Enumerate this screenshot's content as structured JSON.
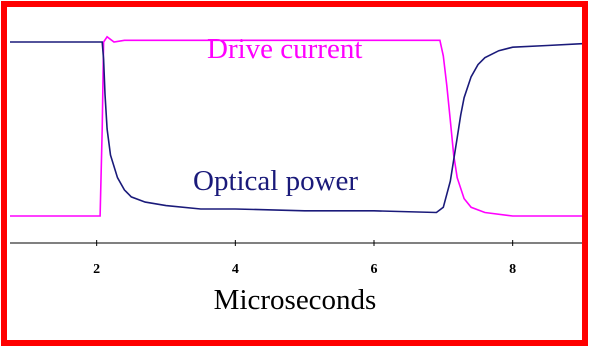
{
  "chart_data": {
    "type": "line",
    "title": "",
    "xlabel": "Microseconds",
    "ylabel": "",
    "xlim": [
      0.75,
      9
    ],
    "ylim": [
      0,
      1
    ],
    "x_ticks": [
      2,
      4,
      6,
      8
    ],
    "grid": false,
    "legend": "none",
    "border_color": "#ff0000",
    "series": [
      {
        "name": "Drive current",
        "color": "#ff00ff",
        "x": [
          0.75,
          2.05,
          2.08,
          2.1,
          2.15,
          2.25,
          2.4,
          3.0,
          4.0,
          5.0,
          6.0,
          6.95,
          7.0,
          7.05,
          7.1,
          7.15,
          7.2,
          7.3,
          7.4,
          7.6,
          8.0,
          8.5,
          9.0
        ],
        "values": [
          0.0,
          0.0,
          0.5,
          1.0,
          1.03,
          1.0,
          1.01,
          1.01,
          1.01,
          1.01,
          1.01,
          1.01,
          0.92,
          0.75,
          0.55,
          0.35,
          0.22,
          0.1,
          0.05,
          0.02,
          0.0,
          0.0,
          0.0
        ]
      },
      {
        "name": "Optical power",
        "color": "#1a1a7a",
        "x": [
          0.75,
          1.5,
          2.0,
          2.08,
          2.1,
          2.12,
          2.15,
          2.2,
          2.3,
          2.4,
          2.5,
          2.7,
          3.0,
          3.5,
          4.0,
          5.0,
          6.0,
          6.9,
          7.0,
          7.1,
          7.2,
          7.25,
          7.3,
          7.4,
          7.5,
          7.6,
          7.8,
          8.0,
          8.5,
          9.0
        ],
        "values": [
          1.0,
          1.0,
          1.0,
          1.0,
          0.9,
          0.7,
          0.5,
          0.35,
          0.22,
          0.15,
          0.11,
          0.08,
          0.06,
          0.04,
          0.04,
          0.03,
          0.03,
          0.02,
          0.05,
          0.2,
          0.45,
          0.58,
          0.68,
          0.8,
          0.87,
          0.91,
          0.95,
          0.97,
          0.98,
          0.99
        ]
      }
    ],
    "annotations": [
      {
        "text": "Drive current",
        "series": "Drive current"
      },
      {
        "text": "Optical power",
        "series": "Optical power"
      }
    ]
  }
}
